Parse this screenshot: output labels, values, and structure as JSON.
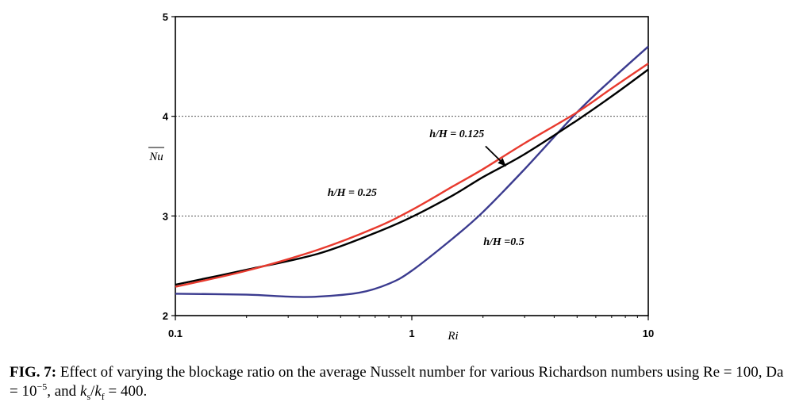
{
  "chart_data": {
    "type": "line",
    "xscale": "log",
    "xlim": [
      0.1,
      10
    ],
    "ylim": [
      2,
      5
    ],
    "xticks": [
      "0.1",
      "1",
      "10"
    ],
    "yticks": [
      "2",
      "3",
      "4",
      "5"
    ],
    "xlabel": "Ri",
    "ylabel": "Nu",
    "gridlines_y": [
      3,
      4
    ],
    "series": [
      {
        "name": "h/H = 0.125",
        "color": "#e83a2e",
        "x": [
          0.1,
          0.2,
          0.4,
          0.7,
          1,
          1.5,
          2,
          3,
          5,
          7,
          10
        ],
        "y": [
          2.29,
          2.45,
          2.66,
          2.88,
          3.06,
          3.3,
          3.47,
          3.73,
          4.04,
          4.28,
          4.53
        ]
      },
      {
        "name": "h/H = 0.25",
        "color": "#000000",
        "x": [
          0.1,
          0.2,
          0.4,
          0.7,
          1,
          1.5,
          2,
          3,
          5,
          7,
          10
        ],
        "y": [
          2.31,
          2.46,
          2.62,
          2.83,
          2.99,
          3.21,
          3.39,
          3.62,
          3.96,
          4.2,
          4.47
        ]
      },
      {
        "name": "h/H =0.5",
        "color": "#3b3b8f",
        "x": [
          0.1,
          0.2,
          0.3,
          0.4,
          0.6,
          0.8,
          1,
          1.5,
          2,
          3,
          5,
          7,
          10
        ],
        "y": [
          2.22,
          2.21,
          2.19,
          2.19,
          2.23,
          2.32,
          2.45,
          2.78,
          3.04,
          3.47,
          4.04,
          4.37,
          4.7
        ]
      }
    ],
    "annotations": [
      {
        "text": "h/H = 0.125",
        "x": 1.55,
        "y": 3.79
      },
      {
        "text": "h/H = 0.25",
        "x": 0.56,
        "y": 3.2
      },
      {
        "text": "h/H =0.5",
        "x": 2.45,
        "y": 2.71
      }
    ],
    "arrow": {
      "from": {
        "x": 2.05,
        "y": 3.7
      },
      "to": {
        "x": 2.5,
        "y": 3.5
      }
    }
  },
  "caption": {
    "fig_label": "FIG. 7:",
    "text": " Effect of varying the blockage ratio on the average Nusselt number for various Richardson numbers using Re = 100, Da = 10",
    "da_exponent": "−5",
    "mid": ", and ",
    "ks_base": "k",
    "ks_sub": "s",
    "slash": "/",
    "kf_base": "k",
    "kf_sub": "f",
    "end": " = 400."
  }
}
